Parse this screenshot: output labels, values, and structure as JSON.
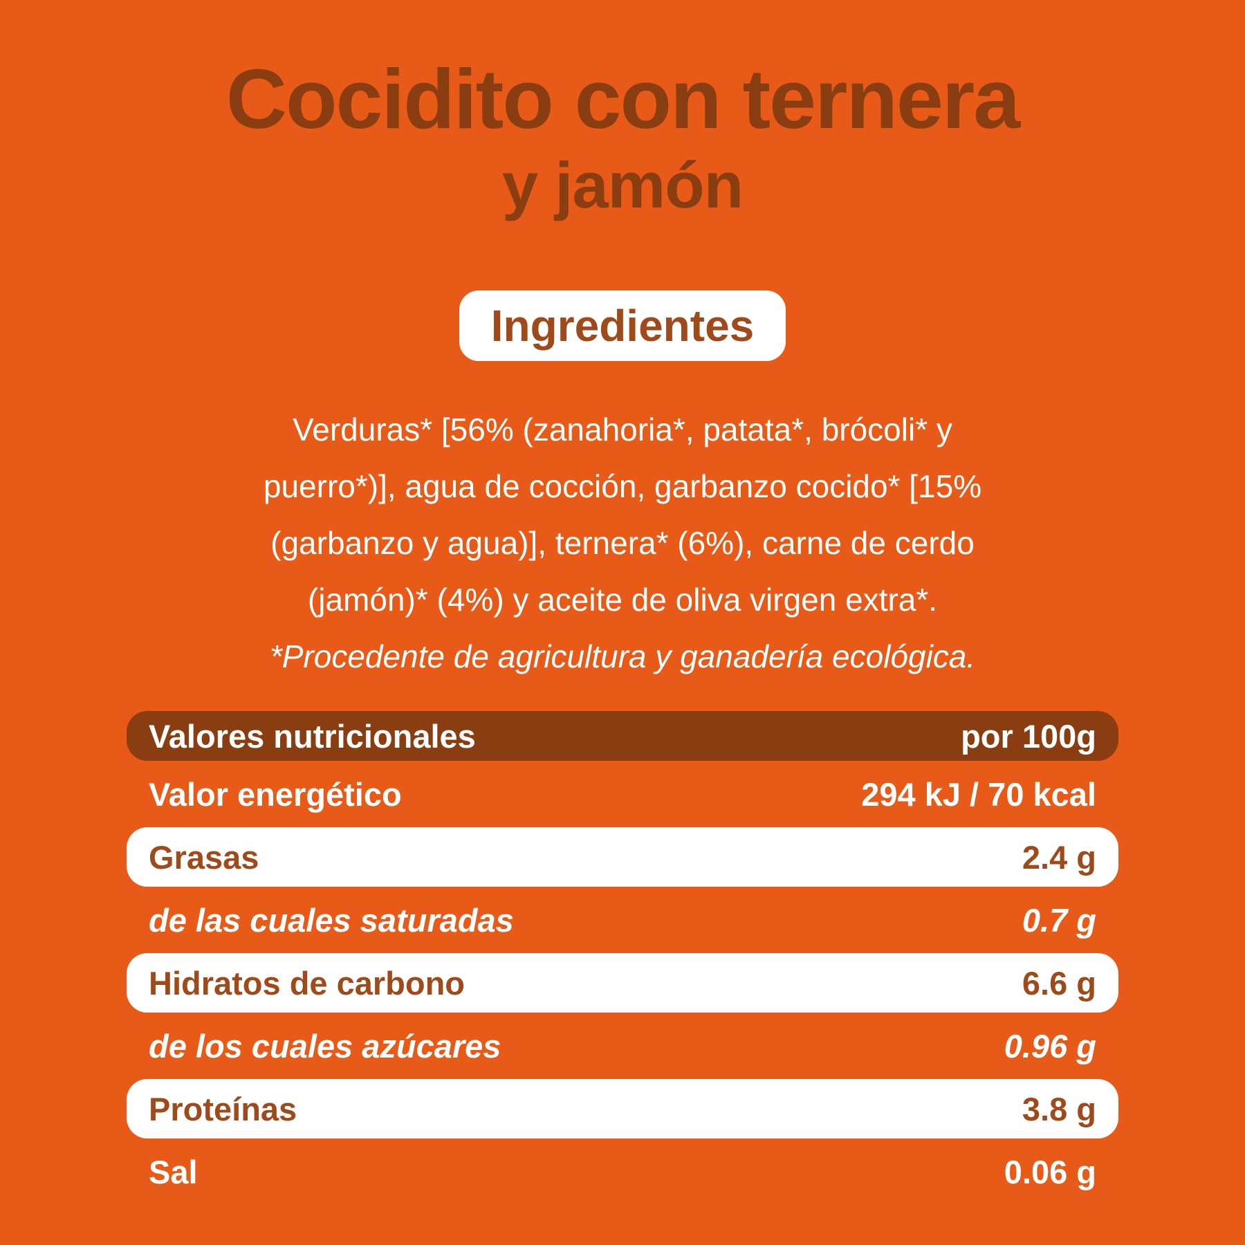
{
  "colors": {
    "background_orange": "#E75A18",
    "dark_brown": "#8B3D12",
    "label_brown": "#9F4A1A",
    "white": "#FFFFFF"
  },
  "title": {
    "line1": "Cocidito con ternera",
    "line2": "y jamón"
  },
  "ingredients": {
    "heading": "Ingredientes",
    "lines": [
      "Verduras* [56% (zanahoria*, patata*, brócoli* y",
      "puerro*)], agua de cocción, garbanzo cocido* [15%",
      "(garbanzo y agua)], ternera* (6%), carne de cerdo",
      "(jamón)* (4%) y aceite de oliva virgen extra*."
    ],
    "note": "*Procedente de agricultura y ganadería ecológica."
  },
  "nutrition": {
    "header": {
      "label": "Valores nutricionales",
      "unit": "por 100g"
    },
    "rows": [
      {
        "label": "Valor energético",
        "value": "294 kJ / 70 kcal"
      },
      {
        "label": "Grasas",
        "value": "2.4 g"
      },
      {
        "label": "de las cuales saturadas",
        "value": "0.7 g"
      },
      {
        "label": "Hidratos de carbono",
        "value": "6.6 g"
      },
      {
        "label": "de los cuales azúcares",
        "value": "0.96 g"
      },
      {
        "label": "Proteínas",
        "value": "3.8 g"
      },
      {
        "label": "Sal",
        "value": "0.06 g"
      }
    ]
  }
}
